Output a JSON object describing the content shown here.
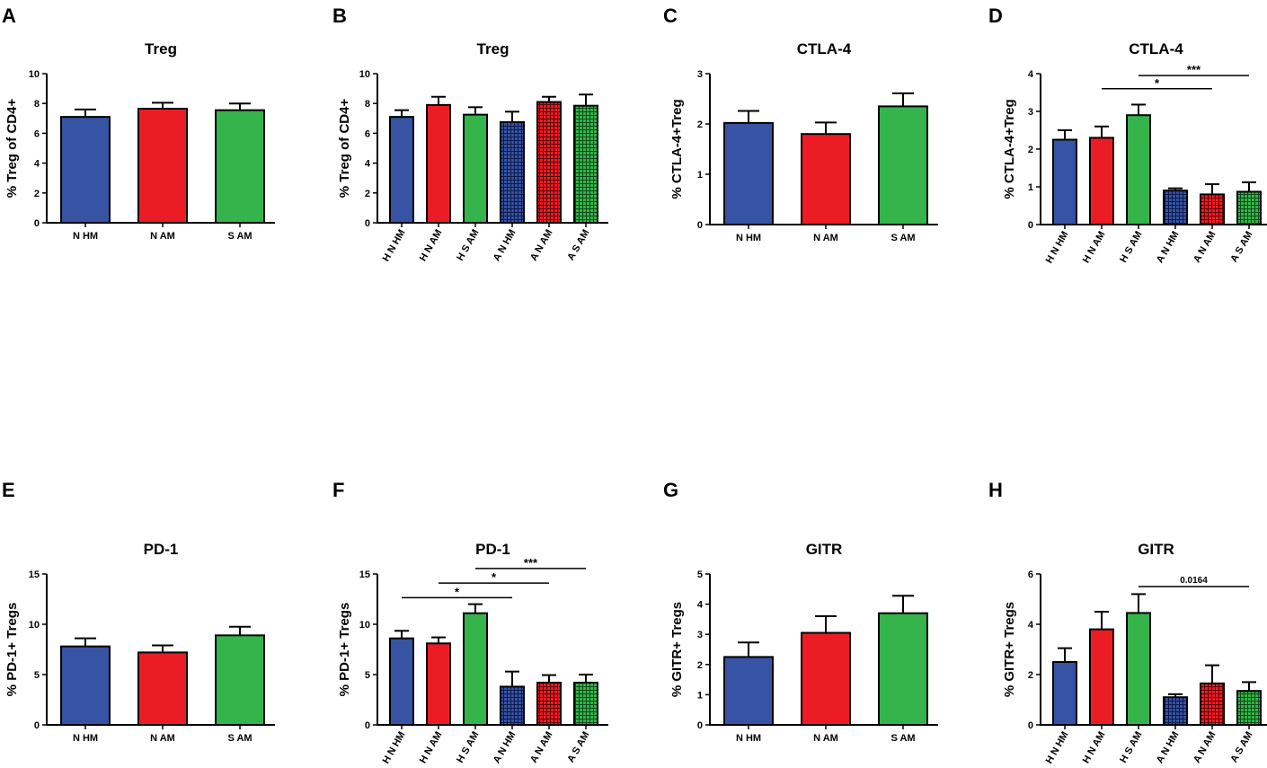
{
  "colors": {
    "blue": "#3653a4",
    "red": "#ec1c24",
    "green": "#34b44a",
    "axis": "#000000"
  },
  "chart_data": [
    {
      "panel": "A",
      "type": "bar",
      "title": "Treg",
      "ylabel": "% Treg of CD4+",
      "ylim": [
        0,
        10
      ],
      "yticks": [
        0,
        2,
        4,
        6,
        8,
        10
      ],
      "categories": [
        "N HM",
        "N AM",
        "S AM"
      ],
      "values": [
        7.1,
        7.65,
        7.55
      ],
      "errors": [
        0.5,
        0.4,
        0.45
      ],
      "fill": [
        "blue",
        "red",
        "green"
      ],
      "hatched": [
        false,
        false,
        false
      ],
      "rotated_labels": false,
      "significance": []
    },
    {
      "panel": "B",
      "type": "bar",
      "title": "Treg",
      "ylabel": "% Treg of CD4+",
      "ylim": [
        0,
        10
      ],
      "yticks": [
        0,
        2,
        4,
        6,
        8,
        10
      ],
      "categories": [
        "H N HM",
        "H N AM",
        "H S AM",
        "A N HM",
        "A N AM",
        "A S AM"
      ],
      "values": [
        7.1,
        7.9,
        7.25,
        6.75,
        8.1,
        7.85
      ],
      "errors": [
        0.45,
        0.55,
        0.5,
        0.7,
        0.35,
        0.75
      ],
      "fill": [
        "blue",
        "red",
        "green",
        "blue",
        "red",
        "green"
      ],
      "hatched": [
        false,
        false,
        false,
        true,
        true,
        true
      ],
      "rotated_labels": true,
      "significance": []
    },
    {
      "panel": "C",
      "type": "bar",
      "title": "CTLA-4",
      "ylabel": "% CTLA-4+Treg",
      "ylim": [
        0,
        3
      ],
      "yticks": [
        0,
        1,
        2,
        3
      ],
      "categories": [
        "N HM",
        "N AM",
        "S AM"
      ],
      "values": [
        2.02,
        1.8,
        2.35
      ],
      "errors": [
        0.24,
        0.23,
        0.26
      ],
      "fill": [
        "blue",
        "red",
        "green"
      ],
      "hatched": [
        false,
        false,
        false
      ],
      "rotated_labels": false,
      "significance": []
    },
    {
      "panel": "D",
      "type": "bar",
      "title": "CTLA-4",
      "ylabel": "% CTLA-4+Treg",
      "ylim": [
        0,
        4
      ],
      "yticks": [
        0,
        1,
        2,
        3,
        4
      ],
      "categories": [
        "H N HM",
        "H N AM",
        "H S AM",
        "A N HM",
        "A N AM",
        "A S AM"
      ],
      "values": [
        2.25,
        2.3,
        2.9,
        0.9,
        0.8,
        0.87
      ],
      "errors": [
        0.25,
        0.3,
        0.28,
        0.06,
        0.27,
        0.25
      ],
      "fill": [
        "blue",
        "red",
        "green",
        "blue",
        "red",
        "green"
      ],
      "hatched": [
        false,
        false,
        false,
        true,
        true,
        true
      ],
      "rotated_labels": true,
      "significance": [
        {
          "from": 2,
          "to": 5,
          "label": "***",
          "level": 3.95
        },
        {
          "from": 1,
          "to": 4,
          "label": "*",
          "level": 3.6
        }
      ]
    },
    {
      "panel": "E",
      "type": "bar",
      "title": "PD-1",
      "ylabel": "% PD-1+ Tregs",
      "ylim": [
        0,
        15
      ],
      "yticks": [
        0,
        5,
        10,
        15
      ],
      "categories": [
        "N HM",
        "N AM",
        "S AM"
      ],
      "values": [
        7.8,
        7.2,
        8.9
      ],
      "errors": [
        0.8,
        0.7,
        0.85
      ],
      "fill": [
        "blue",
        "red",
        "green"
      ],
      "hatched": [
        false,
        false,
        false
      ],
      "rotated_labels": false,
      "significance": []
    },
    {
      "panel": "F",
      "type": "bar",
      "title": "PD-1",
      "ylabel": "% PD-1+ Tregs",
      "ylim": [
        0,
        15
      ],
      "yticks": [
        0,
        5,
        10,
        15
      ],
      "categories": [
        "H N HM",
        "H N AM",
        "H S AM",
        "A N HM",
        "A N AM",
        "A S AM"
      ],
      "values": [
        8.6,
        8.1,
        11.1,
        3.8,
        4.2,
        4.2
      ],
      "errors": [
        0.75,
        0.6,
        0.9,
        1.5,
        0.75,
        0.8
      ],
      "fill": [
        "blue",
        "red",
        "green",
        "blue",
        "red",
        "green"
      ],
      "hatched": [
        false,
        false,
        false,
        true,
        true,
        true
      ],
      "rotated_labels": true,
      "significance": [
        {
          "from": 2,
          "to": 5,
          "label": "***",
          "level": 15.55
        },
        {
          "from": 1,
          "to": 4,
          "label": "*",
          "level": 14.1
        },
        {
          "from": 0,
          "to": 3,
          "label": "*",
          "level": 12.65
        }
      ]
    },
    {
      "panel": "G",
      "type": "bar",
      "title": "GITR",
      "ylabel": "% GITR+ Tregs",
      "ylim": [
        0,
        5
      ],
      "yticks": [
        0,
        1,
        2,
        3,
        4,
        5
      ],
      "categories": [
        "N HM",
        "N AM",
        "S AM"
      ],
      "values": [
        2.25,
        3.05,
        3.7
      ],
      "errors": [
        0.48,
        0.55,
        0.58
      ],
      "fill": [
        "blue",
        "red",
        "green"
      ],
      "hatched": [
        false,
        false,
        false
      ],
      "rotated_labels": false,
      "significance": []
    },
    {
      "panel": "H",
      "type": "bar",
      "title": "GITR",
      "ylabel": "% GITR+ Tregs",
      "ylim": [
        0,
        6
      ],
      "yticks": [
        0,
        2,
        4,
        6
      ],
      "categories": [
        "H N HM",
        "H N AM",
        "H S AM",
        "A N HM",
        "A N AM",
        "A S AM"
      ],
      "values": [
        2.5,
        3.8,
        4.45,
        1.1,
        1.65,
        1.35
      ],
      "errors": [
        0.55,
        0.7,
        0.75,
        0.12,
        0.72,
        0.35
      ],
      "fill": [
        "blue",
        "red",
        "green",
        "blue",
        "red",
        "green"
      ],
      "hatched": [
        false,
        false,
        false,
        true,
        true,
        true
      ],
      "rotated_labels": true,
      "significance": [
        {
          "from": 2,
          "to": 5,
          "label": "0.0164",
          "level": 5.5
        }
      ]
    }
  ]
}
